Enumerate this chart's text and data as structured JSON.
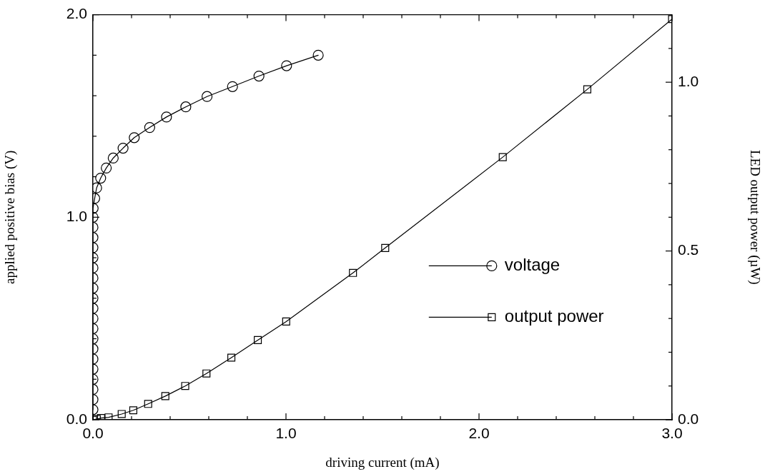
{
  "chart_data": {
    "type": "line",
    "xlabel": "driving current (mA)",
    "ylabel": "applied positive bias (V)",
    "y2label": "LED output power (µW)",
    "xlim": [
      0,
      3
    ],
    "xticks": [
      {
        "value": 0,
        "label": "0.0"
      },
      {
        "value": 0.2,
        "label": null
      },
      {
        "value": 0.4,
        "label": null
      },
      {
        "value": 0.6,
        "label": null
      },
      {
        "value": 0.8,
        "label": null
      },
      {
        "value": 1,
        "label": "1.0"
      },
      {
        "value": 1.2,
        "label": null
      },
      {
        "value": 1.4,
        "label": null
      },
      {
        "value": 1.6,
        "label": null
      },
      {
        "value": 1.8,
        "label": null
      },
      {
        "value": 2,
        "label": "2.0"
      },
      {
        "value": 2.2,
        "label": null
      },
      {
        "value": 2.4,
        "label": null
      },
      {
        "value": 2.6,
        "label": null
      },
      {
        "value": 2.8,
        "label": null
      },
      {
        "value": 3,
        "label": "3.0"
      }
    ],
    "ylim": [
      0,
      2
    ],
    "yticks": [
      {
        "value": 0,
        "label": "0.0"
      },
      {
        "value": 0.2,
        "label": null
      },
      {
        "value": 0.4,
        "label": null
      },
      {
        "value": 0.6,
        "label": null
      },
      {
        "value": 0.8,
        "label": null
      },
      {
        "value": 1,
        "label": "1.0"
      },
      {
        "value": 1.2,
        "label": null
      },
      {
        "value": 1.4,
        "label": null
      },
      {
        "value": 1.6,
        "label": null
      },
      {
        "value": 1.8,
        "label": null
      },
      {
        "value": 2,
        "label": "2.0"
      }
    ],
    "y2lim": [
      0,
      1.2
    ],
    "y2ticks": [
      {
        "value": 0,
        "label": "0.0"
      },
      {
        "value": 0.1,
        "label": null
      },
      {
        "value": 0.2,
        "label": null
      },
      {
        "value": 0.3,
        "label": null
      },
      {
        "value": 0.4,
        "label": null
      },
      {
        "value": 0.5,
        "label": "0.5"
      },
      {
        "value": 0.6,
        "label": null
      },
      {
        "value": 0.7,
        "label": null
      },
      {
        "value": 0.8,
        "label": null
      },
      {
        "value": 0.9,
        "label": null
      },
      {
        "value": 1,
        "label": "1.0"
      },
      {
        "value": 1.1,
        "label": null
      },
      {
        "value": 1.2,
        "label": null
      }
    ],
    "legend": "right",
    "grid": false,
    "line_style": "solid",
    "series": [
      {
        "name": "voltage",
        "color": "#000000",
        "marker": "circle",
        "x": [
          0,
          0,
          0,
          0,
          0,
          0,
          0,
          0,
          0,
          0,
          0,
          0,
          0,
          0,
          0,
          0,
          0,
          0,
          0,
          0,
          0.001,
          0.009,
          0.019,
          0.04,
          0.069,
          0.105,
          0.156,
          0.214,
          0.294,
          0.381,
          0.481,
          0.591,
          0.723,
          0.86,
          1.003,
          1.167
        ],
        "values": [
          0.05,
          0.1,
          0.15,
          0.2,
          0.25,
          0.3,
          0.35,
          0.4,
          0.45,
          0.5,
          0.55,
          0.6,
          0.65,
          0.7,
          0.75,
          0.8,
          0.85,
          0.9,
          0.95,
          1.0,
          1.044,
          1.093,
          1.145,
          1.193,
          1.243,
          1.292,
          1.341,
          1.393,
          1.443,
          1.495,
          1.545,
          1.596,
          1.645,
          1.697,
          1.748,
          1.8
        ]
      },
      {
        "name": "output power",
        "color": "#000000",
        "marker": "square",
        "axis": "y2",
        "x": [
          0,
          0.02,
          0.042,
          0.081,
          0.149,
          0.209,
          0.286,
          0.375,
          0.478,
          0.588,
          0.717,
          0.854,
          1.001,
          1.347,
          1.514,
          2.123,
          2.561,
          3.0
        ],
        "values": [
          0,
          0.002,
          0.005,
          0.007,
          0.017,
          0.028,
          0.047,
          0.07,
          0.1,
          0.137,
          0.184,
          0.236,
          0.291,
          0.435,
          0.509,
          0.778,
          0.979,
          1.187
        ]
      }
    ]
  }
}
